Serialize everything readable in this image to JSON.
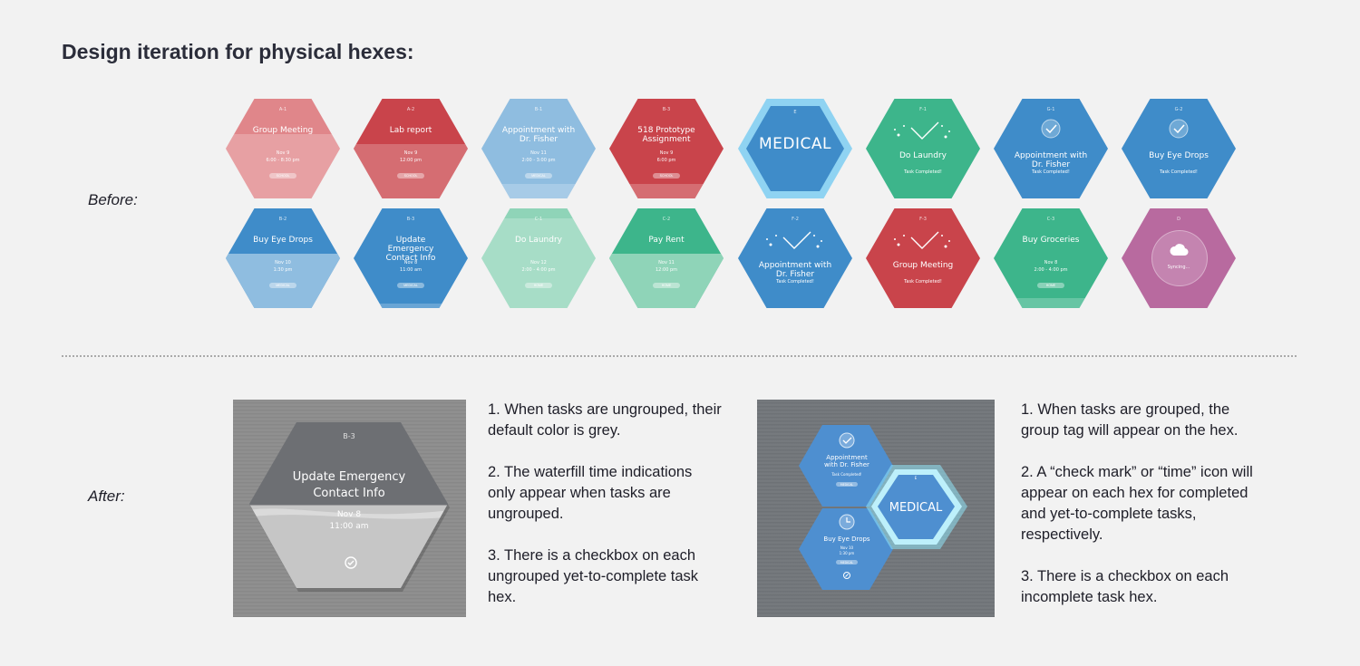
{
  "title": "Design iteration for physical hexes:",
  "before_label": "Before:",
  "after_label": "After:",
  "colors": {
    "pink": "#e0868a",
    "red": "#c9444b",
    "light_blue": "#8fbde0",
    "blue": "#3f8cc9",
    "light_green": "#8fd4b8",
    "green": "#3db58b",
    "purple": "#b86a9f",
    "cyan_border": "#8fd3f2"
  },
  "before_hexes": [
    {
      "kind": "task",
      "color": "pink",
      "code": "A-1",
      "name": "Group Meeting",
      "date": "Nov 9",
      "time": "6:00 - 8:30 pm",
      "tag": "SCHOOL",
      "fill": 0.65
    },
    {
      "kind": "task",
      "color": "red",
      "code": "A-2",
      "name": "Lab report",
      "date": "Nov 9",
      "time": "12:00 pm",
      "tag": "SCHOOL",
      "fill": 0.55
    },
    {
      "kind": "task",
      "color": "light_blue",
      "code": "B-1",
      "name": "Appointment with Dr. Fisher",
      "date": "Nov 11",
      "time": "2:00 - 3:00 pm",
      "tag": "MEDICAL",
      "fill": 0.15
    },
    {
      "kind": "task",
      "color": "red",
      "code": "B-3",
      "name": "518 Prototype Assignment",
      "date": "Nov 9",
      "time": "6:00 pm",
      "tag": "SCHOOL",
      "fill": 0.15
    },
    {
      "kind": "group",
      "color": "blue",
      "code": "E",
      "name": "MEDICAL"
    },
    {
      "kind": "done",
      "color": "green",
      "code": "F-1",
      "name": "Do Laundry",
      "sub": "Task Completed!",
      "icon": "fireworks"
    },
    {
      "kind": "done",
      "color": "blue",
      "code": "G-1",
      "name": "Appointment with Dr. Fisher",
      "sub": "Task Completed!",
      "icon": "check"
    },
    {
      "kind": "done",
      "color": "blue",
      "code": "G-2",
      "name": "Buy Eye Drops",
      "sub": "Task Completed!",
      "icon": "check"
    },
    {
      "kind": "task",
      "color": "light_blue",
      "code": "B-2",
      "name": "Buy Eye Drops",
      "date": "Nov 10",
      "time": "1:30 pm",
      "tag": "MEDICAL",
      "fill": 0.55,
      "base": "blue"
    },
    {
      "kind": "task",
      "color": "blue",
      "code": "B-3",
      "name": "Update Emergency Contact Info",
      "date": "Nov 8",
      "time": "11:00 am",
      "tag": "MEDICAL",
      "fill": 0.05
    },
    {
      "kind": "task",
      "color": "light_green",
      "code": "C-1",
      "name": "Do Laundry",
      "date": "Nov 12",
      "time": "2:00 - 4:00 pm",
      "tag": "HOME",
      "fill": 0.9
    },
    {
      "kind": "task",
      "color": "light_green",
      "code": "C-2",
      "name": "Pay Rent",
      "date": "Nov 11",
      "time": "12:00 pm",
      "tag": "HOME",
      "fill": 0.55,
      "base": "green"
    },
    {
      "kind": "done",
      "color": "blue",
      "code": "F-2",
      "name": "Appointment with Dr. Fisher",
      "sub": "Task Completed!",
      "icon": "fireworks"
    },
    {
      "kind": "done",
      "color": "red",
      "code": "F-3",
      "name": "Group Meeting",
      "sub": "Task Completed!",
      "icon": "fireworks"
    },
    {
      "kind": "task",
      "color": "green",
      "code": "C-3",
      "name": "Buy Groceries",
      "date": "Nov 8",
      "time": "2:00 - 4:00 pm",
      "tag": "HOME",
      "fill": 0.1
    },
    {
      "kind": "sync",
      "color": "purple",
      "code": "D",
      "name": "Syncing..."
    }
  ],
  "after_left": {
    "hex": {
      "code": "B-3",
      "name": "Update Emergency Contact Info",
      "date": "Nov 8",
      "time": "11:00 am",
      "fill": 0.5,
      "icon": "checkbox-icon"
    },
    "notes": [
      "1. When tasks are ungrouped, their default color is grey.",
      "2. The waterfill time indications only appear when tasks are ungrouped.",
      "3. There is a checkbox on each ungrouped yet-to-complete task hex."
    ]
  },
  "after_right": {
    "hexes": [
      {
        "code": "",
        "name": "Appointment with Dr. Fisher",
        "sub": "Task Completed!",
        "tag": "MEDICAL",
        "icon": "check"
      },
      {
        "code": "",
        "name": "Buy Eye Drops",
        "date": "Nov 10",
        "time": "1:30 pm",
        "tag": "MEDICAL",
        "icon": "clock"
      },
      {
        "code": "E",
        "name": "MEDICAL"
      }
    ],
    "notes": [
      "1. When tasks are grouped, the group tag will appear on the hex.",
      "2. A “check mark” or “time” icon will appear on each hex for completed and yet-to-complete tasks, respectively.",
      "3. There is a checkbox on each incomplete task hex."
    ]
  }
}
